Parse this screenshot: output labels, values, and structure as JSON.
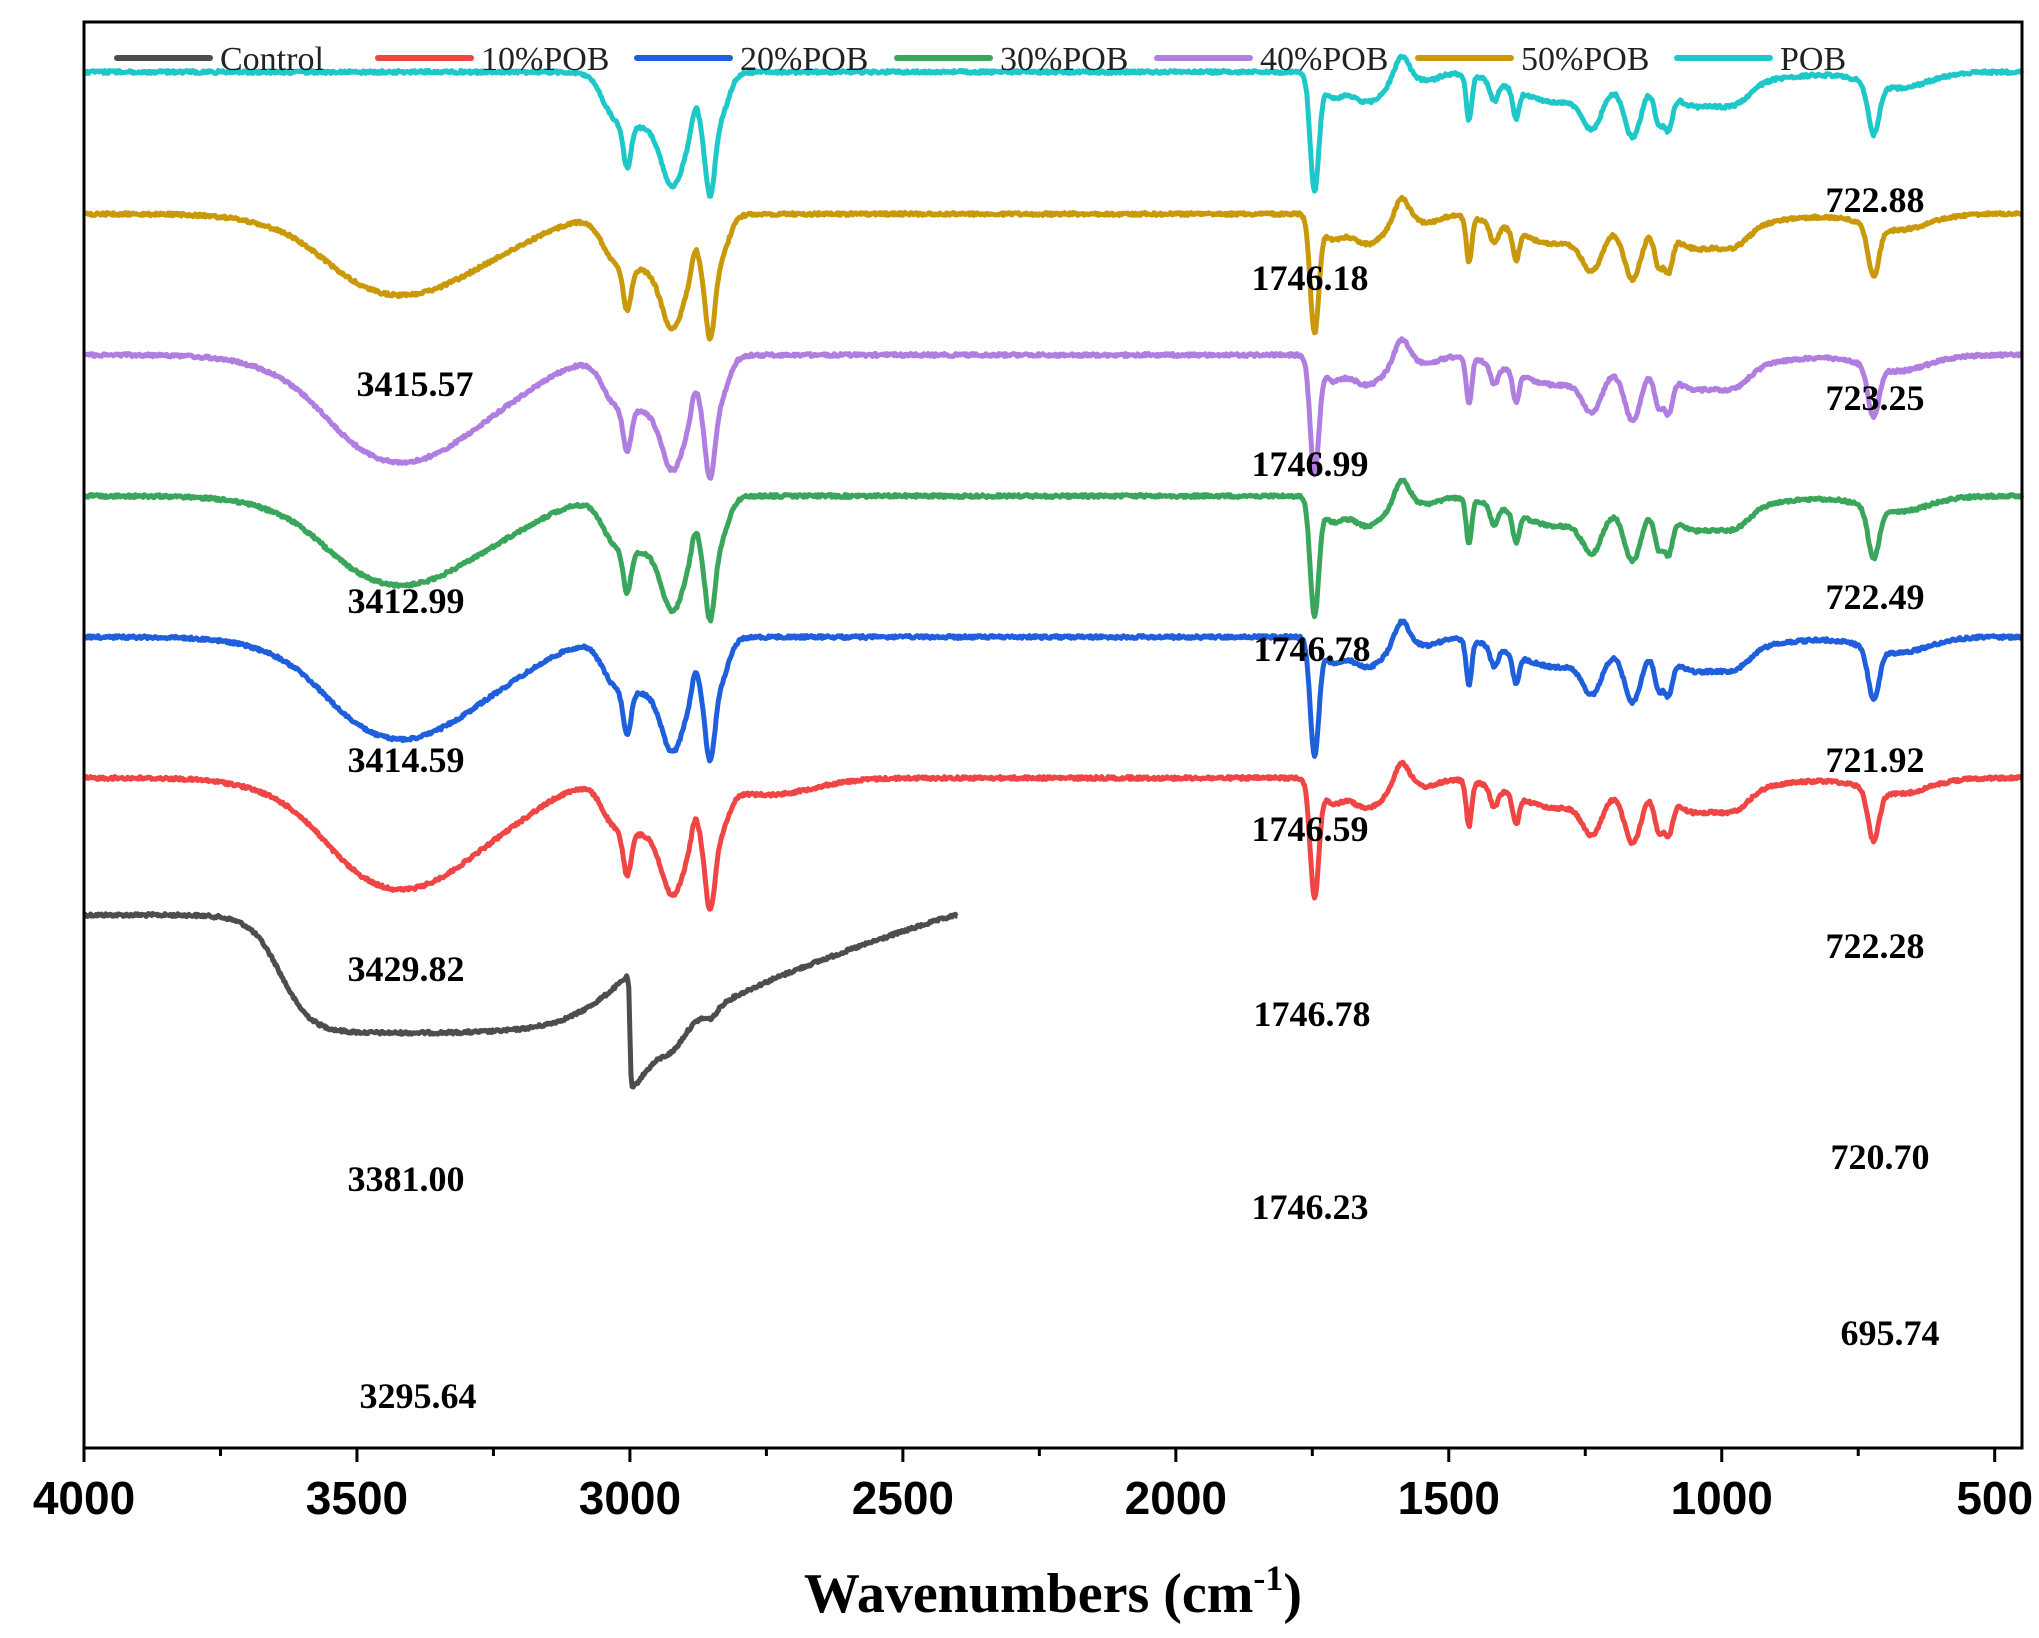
{
  "chart_data": {
    "type": "line",
    "title": "",
    "xlabel": "Wavenumbers (cm",
    "xlabel_sup": "-1",
    "xlabel_close": ")",
    "ylabel": "",
    "xlim": [
      4000,
      450
    ],
    "x_ticks": [
      4000,
      3500,
      3000,
      2500,
      2000,
      1500,
      1000,
      500
    ],
    "x_tick_labels": [
      "4000",
      "3500",
      "3000",
      "2500",
      "2000",
      "1500",
      "1000",
      "500"
    ],
    "legend_position": "top",
    "series": [
      {
        "name": "Control",
        "color": "#4d4d4d",
        "baseline": 6,
        "peaks": [
          {
            "x": 3295.64,
            "label": "3295.64"
          },
          {
            "x": 695.74,
            "label": "695.74"
          }
        ]
      },
      {
        "name": "10%POB",
        "color": "#f04545",
        "baseline": 5,
        "peaks": [
          {
            "x": 3381.0,
            "label": "3381.00"
          },
          {
            "x": 1746.23,
            "label": "1746.23"
          },
          {
            "x": 720.7,
            "label": "720.70"
          }
        ]
      },
      {
        "name": "20%POB",
        "color": "#1f5fdc",
        "baseline": 4,
        "peaks": [
          {
            "x": 3429.82,
            "label": "3429.82"
          },
          {
            "x": 1746.78,
            "label": "1746.78"
          },
          {
            "x": 722.28,
            "label": "722.28"
          }
        ]
      },
      {
        "name": "30%POB",
        "color": "#3aa65c",
        "baseline": 3,
        "peaks": [
          {
            "x": 3414.59,
            "label": "3414.59"
          },
          {
            "x": 1746.59,
            "label": "1746.59"
          },
          {
            "x": 721.92,
            "label": "721.92"
          }
        ]
      },
      {
        "name": "40%POB",
        "color": "#b07ee0",
        "baseline": 2,
        "peaks": [
          {
            "x": 3412.99,
            "label": "3412.99"
          },
          {
            "x": 1746.78,
            "label": "1746.78"
          },
          {
            "x": 722.49,
            "label": "722.49"
          }
        ]
      },
      {
        "name": "50%POB",
        "color": "#c9990a",
        "baseline": 1,
        "peaks": [
          {
            "x": 3415.57,
            "label": "3415.57"
          },
          {
            "x": 1746.99,
            "label": "1746.99"
          },
          {
            "x": 723.25,
            "label": "723.25"
          }
        ]
      },
      {
        "name": "POB",
        "color": "#1ec8c8",
        "baseline": 0,
        "peaks": [
          {
            "x": 1746.18,
            "label": "1746.18"
          },
          {
            "x": 722.88,
            "label": "722.88"
          }
        ]
      }
    ]
  }
}
